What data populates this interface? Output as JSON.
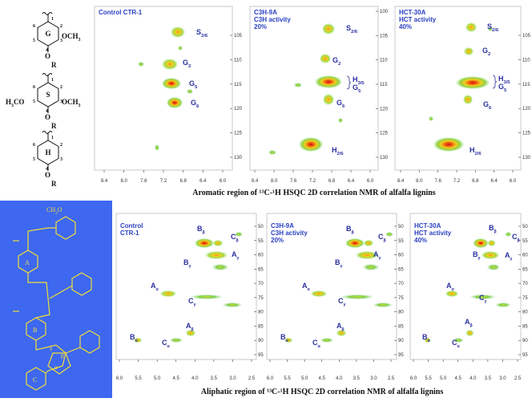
{
  "aromatic": {
    "structures": [
      {
        "ring": "G",
        "numbers": [
          "6",
          "5",
          "4",
          "3",
          "2",
          "1"
        ],
        "groups": [
          {
            "text": "OCH",
            "sub": "3"
          },
          {
            "text": "O"
          },
          {
            "text": "R"
          }
        ]
      },
      {
        "ring": "S",
        "numbers": [
          "6",
          "5",
          "4",
          "3",
          "2",
          "1"
        ],
        "groups": [
          {
            "text": "H",
            "sub": "3",
            "after": "CO"
          },
          {
            "text": "OCH",
            "sub": "3"
          },
          {
            "text": "O"
          },
          {
            "text": "R"
          }
        ]
      },
      {
        "ring": "H",
        "numbers": [
          "6",
          "5",
          "4",
          "3",
          "2",
          "1"
        ],
        "groups": [
          {
            "text": "O"
          },
          {
            "text": "R"
          }
        ]
      }
    ],
    "panels": [
      {
        "title": [
          "Control CTR-1"
        ],
        "peaks": [
          {
            "text": "S",
            "sub": "2/6"
          },
          {
            "text": "G",
            "sub": "2"
          },
          {
            "text": "G",
            "sub": "5"
          },
          {
            "text": "G",
            "sub": "6"
          }
        ],
        "xticks": [
          "8.4",
          "8.0",
          "7.6",
          "7.2",
          "6.8",
          "6.4",
          "6.0"
        ],
        "yticks": [
          "105",
          "110",
          "115",
          "120",
          "125",
          "130"
        ]
      },
      {
        "title": [
          "C3H-9A",
          "C3H activity",
          "20%"
        ],
        "peaks": [
          {
            "text": "S",
            "sub": "2/6"
          },
          {
            "text": "G",
            "sub": "2"
          },
          {
            "text": "H",
            "sub": "3/5"
          },
          {
            "text": "G",
            "sub": "5"
          },
          {
            "text": "G",
            "sub": "6"
          },
          {
            "text": "H",
            "sub": "2/6"
          }
        ],
        "xticks": [
          "8.4",
          "8.0",
          "7.6",
          "7.2",
          "6.8",
          "6.4",
          "6.0"
        ],
        "yticks": [
          "100",
          "105",
          "110",
          "115",
          "120",
          "125",
          "130"
        ]
      },
      {
        "title": [
          "HCT-30A",
          "HCT activity",
          "40%"
        ],
        "peaks": [
          {
            "text": "S",
            "sub": "2/6"
          },
          {
            "text": "G",
            "sub": "2"
          },
          {
            "text": "H",
            "sub": "3/5"
          },
          {
            "text": "G",
            "sub": "5"
          },
          {
            "text": "G",
            "sub": "6"
          },
          {
            "text": "H",
            "sub": "2/6"
          }
        ],
        "xticks": [
          "8.4",
          "8.0",
          "7.6",
          "7.2",
          "6.8",
          "6.4",
          "6.0"
        ],
        "yticks": [
          "105",
          "110",
          "115",
          "120",
          "125",
          "130"
        ]
      }
    ],
    "caption": "Aromatic region of ¹³C-¹H HSQC 2D correlation NMR of alfalfa lignins"
  },
  "aliphatic": {
    "structure": {
      "labels": [
        {
          "text": "CH",
          "sub": "2",
          "after": "O"
        },
        {
          "text": "A"
        },
        {
          "text": "B"
        },
        {
          "text": "C"
        },
        {
          "text": "γ"
        },
        {
          "text": "β"
        },
        {
          "text": "α"
        }
      ]
    },
    "panels": [
      {
        "title": [
          "Control",
          "CTR-1"
        ],
        "peaks": [
          {
            "text": "B",
            "sub": "β"
          },
          {
            "text": "C",
            "sub": "β"
          },
          {
            "text": "B",
            "sub": "γ"
          },
          {
            "text": "A",
            "sub": "γ"
          },
          {
            "text": "A",
            "sub": "α"
          },
          {
            "text": "C",
            "sub": "γ"
          },
          {
            "text": "A",
            "sub": "β"
          },
          {
            "text": "B",
            "sub": "α"
          },
          {
            "text": "C",
            "sub": "α"
          }
        ],
        "xticks": [
          "6.0",
          "5.5",
          "5.0",
          "4.5",
          "4.0",
          "3.5",
          "3.0",
          "2.5"
        ],
        "yticks": [
          "50",
          "55",
          "60",
          "65",
          "70",
          "75",
          "80",
          "85",
          "90",
          "95"
        ]
      },
      {
        "title": [
          "C3H-9A",
          "C3H activity",
          "20%"
        ],
        "peaks": [
          {
            "text": "B",
            "sub": "β"
          },
          {
            "text": "C",
            "sub": "β"
          },
          {
            "text": "B",
            "sub": "γ"
          },
          {
            "text": "A",
            "sub": "γ"
          },
          {
            "text": "A",
            "sub": "α"
          },
          {
            "text": "C",
            "sub": "γ"
          },
          {
            "text": "A",
            "sub": "β"
          },
          {
            "text": "B",
            "sub": "α"
          },
          {
            "text": "C",
            "sub": "α"
          }
        ],
        "xticks": [
          "6.0",
          "5.5",
          "5.0",
          "4.5",
          "4.0",
          "3.5",
          "3.0",
          "2.5"
        ],
        "yticks": [
          "50",
          "55",
          "60",
          "65",
          "70",
          "75",
          "80",
          "85",
          "90",
          "95"
        ]
      },
      {
        "title": [
          "HCT-30A",
          "HCT activity",
          "40%"
        ],
        "peaks": [
          {
            "text": "B",
            "sub": "β"
          },
          {
            "text": "C",
            "sub": "β"
          },
          {
            "text": "B",
            "sub": "γ"
          },
          {
            "text": "A",
            "sub": "γ"
          },
          {
            "text": "A",
            "sub": "α"
          },
          {
            "text": "C",
            "sub": "γ"
          },
          {
            "text": "A",
            "sub": "β"
          },
          {
            "text": "B",
            "sub": "α"
          },
          {
            "text": "C",
            "sub": "α"
          }
        ],
        "xticks": [
          "6.0",
          "5.5",
          "5.0",
          "4.5",
          "4.0",
          "3.5",
          "3.0",
          "2.5"
        ],
        "yticks": [
          "50",
          "55",
          "60",
          "65",
          "70",
          "75",
          "80",
          "85",
          "90",
          "95"
        ]
      }
    ],
    "caption": "Aliphatic region of ¹³C-¹H HSQC 2D correlation NMR of alfalfa lignins"
  }
}
